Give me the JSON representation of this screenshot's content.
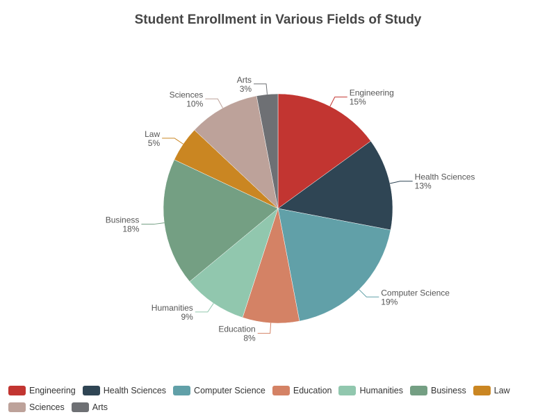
{
  "chart_data": {
    "type": "pie",
    "title": "Student Enrollment in Various Fields of Study",
    "legend_position": "bottom",
    "slices": [
      {
        "name": "Engineering",
        "value": 15,
        "label": "15%",
        "color": "#c23531"
      },
      {
        "name": "Health Sciences",
        "value": 13,
        "label": "13%",
        "color": "#2f4554"
      },
      {
        "name": "Computer Science",
        "value": 19,
        "label": "19%",
        "color": "#61a0a8"
      },
      {
        "name": "Education",
        "value": 8,
        "label": "8%",
        "color": "#d48265"
      },
      {
        "name": "Humanities",
        "value": 9,
        "label": "9%",
        "color": "#91c7ae"
      },
      {
        "name": "Business",
        "value": 18,
        "label": "18%",
        "color": "#749f83"
      },
      {
        "name": "Law",
        "value": 5,
        "label": "5%",
        "color": "#ca8622"
      },
      {
        "name": "Sciences",
        "value": 10,
        "label": "10%",
        "color": "#bda29a"
      },
      {
        "name": "Arts",
        "value": 3,
        "label": "3%",
        "color": "#6e7074"
      }
    ]
  }
}
